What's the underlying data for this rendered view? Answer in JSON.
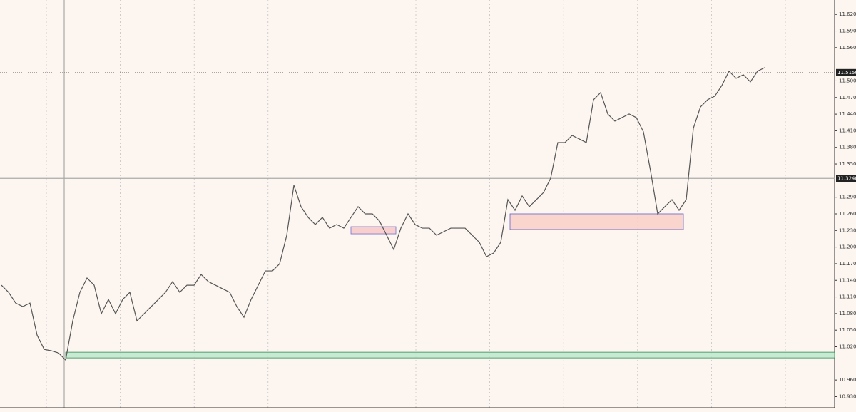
{
  "chart_data": {
    "type": "line",
    "color": "#555555",
    "values": [
      11.1312,
      11.1184,
      11.099,
      11.0926,
      11.099,
      11.0411,
      11.0153,
      11.0128,
      11.0089,
      10.996,
      11.0668,
      11.1184,
      11.1441,
      11.1312,
      11.0797,
      11.1055,
      11.0797,
      11.1055,
      11.1184,
      11.0668,
      11.0797,
      11.0926,
      11.1055,
      11.1184,
      11.1377,
      11.1184,
      11.1312,
      11.1312,
      11.1505,
      11.1377,
      11.1312,
      11.1248,
      11.1184,
      11.0926,
      11.0733,
      11.1055,
      11.1312,
      11.157,
      11.157,
      11.1699,
      11.2214,
      11.3115,
      11.2729,
      11.2536,
      11.2407,
      11.2536,
      11.2342,
      11.2407,
      11.2342,
      11.2536,
      11.2729,
      11.26,
      11.26,
      11.2471,
      11.2214,
      11.1956,
      11.2342,
      11.26,
      11.2407,
      11.2342,
      11.2342,
      11.2214,
      11.2278,
      11.2342,
      11.2342,
      11.2342,
      11.2214,
      11.2085,
      11.1827,
      11.1892,
      11.2085,
      11.2857,
      11.2664,
      11.2922,
      11.2729,
      11.2857,
      11.2986,
      11.3244,
      11.3887,
      11.3887,
      11.4016,
      11.3952,
      11.3887,
      11.466,
      11.4789,
      11.4403,
      11.4274,
      11.4338,
      11.4403,
      11.4338,
      11.4081,
      11.3372,
      11.26,
      11.2729,
      11.2857,
      11.2664,
      11.2857,
      11.4145,
      11.4531,
      11.466,
      11.4724,
      11.4918,
      11.5175,
      11.5046,
      11.5111,
      11.4982,
      11.5175,
      11.5239
    ],
    "ylim": [
      10.91,
      11.646
    ],
    "yticks": [
      {
        "value": 11.62,
        "label": "11.6200"
      },
      {
        "value": 11.59,
        "label": "11.5900"
      },
      {
        "value": 11.56,
        "label": "11.5600"
      },
      {
        "value": 11.5,
        "label": "11.5000"
      },
      {
        "value": 11.47,
        "label": "11.4700"
      },
      {
        "value": 11.44,
        "label": "11.4400"
      },
      {
        "value": 11.41,
        "label": "11.4100"
      },
      {
        "value": 11.38,
        "label": "11.3800"
      },
      {
        "value": 11.35,
        "label": "11.3500"
      },
      {
        "value": 11.29,
        "label": "11.2900"
      },
      {
        "value": 11.26,
        "label": "11.2600"
      },
      {
        "value": 11.23,
        "label": "11.2300"
      },
      {
        "value": 11.2,
        "label": "11.2000"
      },
      {
        "value": 11.17,
        "label": "11.1700"
      },
      {
        "value": 11.14,
        "label": "11.1400"
      },
      {
        "value": 11.11,
        "label": "11.1100"
      },
      {
        "value": 11.08,
        "label": "11.0800"
      },
      {
        "value": 11.05,
        "label": "11.0500"
      },
      {
        "value": 11.02,
        "label": "11.0200"
      },
      {
        "value": 10.96,
        "label": "10.9600"
      },
      {
        "value": 10.93,
        "label": "10.9300"
      }
    ],
    "price_lines": [
      {
        "value": 11.515,
        "label": "11.5150",
        "style": "dotted"
      },
      {
        "value": 11.324,
        "label": "11.3240",
        "style": "solid"
      }
    ],
    "zones": [
      {
        "from": 49,
        "to": 55.3,
        "low": 11.2239,
        "high": 11.2368,
        "color": "#f8c8c8",
        "border": "#7070d0"
      },
      {
        "from": 71.3,
        "to": 95.6,
        "low": 11.2317,
        "high": 11.26,
        "color": "#f8cfc8",
        "border": "#6060c8"
      },
      {
        "from": 9,
        "to": 117,
        "low": 10.9999,
        "high": 11.0102,
        "color": "#bfe8cc",
        "border": "#2e8b57"
      }
    ]
  }
}
